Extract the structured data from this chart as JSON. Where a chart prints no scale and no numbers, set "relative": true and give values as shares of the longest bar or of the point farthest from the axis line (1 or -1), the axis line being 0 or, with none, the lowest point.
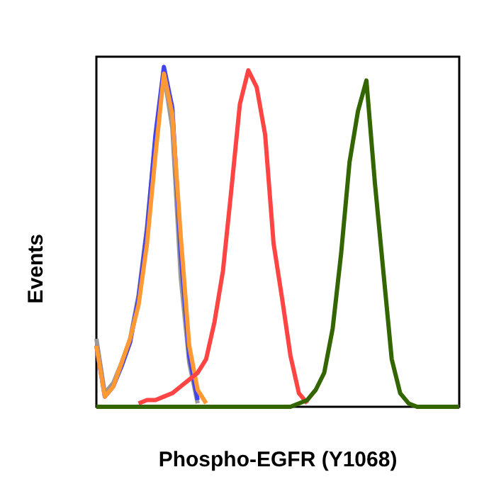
{
  "chart_data": {
    "type": "line",
    "relative": true,
    "xlabel": "Phospho-EGFR (Y1068)",
    "ylabel": "Events",
    "marker": "none",
    "categories": [
      null,
      null,
      null,
      null,
      null,
      null,
      null,
      null,
      null,
      null,
      null,
      null,
      null,
      null,
      null,
      null,
      null,
      null,
      null,
      null,
      null,
      null,
      null,
      null,
      null,
      null,
      null,
      null,
      null,
      null,
      null,
      null,
      null,
      null,
      null,
      null,
      null,
      null,
      null,
      null,
      null,
      null,
      null,
      null
    ],
    "series": [
      {
        "color": "#999999",
        "values": [
          0.2,
          0.04,
          0.07,
          0.13,
          0.2,
          0.33,
          0.53,
          0.79,
          0.98,
          0.82,
          0.38,
          0.13,
          0.01,
          null,
          null,
          null,
          null,
          null,
          null,
          null,
          null,
          null,
          null,
          null,
          null,
          null,
          null,
          null,
          null,
          null,
          null,
          null,
          null,
          null,
          null,
          null,
          null,
          null,
          null,
          null,
          null,
          null,
          null,
          null
        ]
      },
      {
        "color": "#4444ee",
        "values": [
          0.18,
          0.03,
          0.06,
          0.12,
          0.19,
          0.32,
          0.52,
          0.8,
          1.0,
          0.88,
          0.45,
          0.15,
          0.02,
          null,
          null,
          null,
          null,
          null,
          null,
          null,
          null,
          null,
          null,
          null,
          null,
          null,
          null,
          null,
          null,
          null,
          null,
          null,
          null,
          null,
          null,
          null,
          null,
          null,
          null,
          null,
          null,
          null,
          null,
          null
        ]
      },
      {
        "color": "#ff9933",
        "values": [
          0.18,
          0.03,
          0.06,
          0.13,
          0.2,
          0.3,
          0.48,
          0.74,
          0.98,
          0.86,
          0.5,
          0.18,
          0.05,
          0.01,
          null,
          null,
          null,
          null,
          null,
          null,
          null,
          null,
          null,
          null,
          null,
          null,
          null,
          null,
          null,
          null,
          null,
          null,
          null,
          null,
          null,
          null,
          null,
          null,
          null,
          null,
          null,
          null,
          null,
          null
        ]
      },
      {
        "color": "#ff4444",
        "values": [
          null,
          null,
          null,
          null,
          null,
          0.01,
          0.02,
          0.02,
          0.03,
          0.04,
          0.06,
          0.08,
          0.1,
          0.14,
          0.25,
          0.4,
          0.64,
          0.89,
          0.99,
          0.94,
          0.8,
          0.48,
          0.32,
          0.15,
          0.04,
          0.01,
          null,
          null,
          null,
          null,
          null,
          null,
          null,
          null,
          null,
          null,
          null,
          null,
          null,
          null,
          null,
          null,
          null,
          null
        ]
      },
      {
        "color": "#336600",
        "values": [
          0,
          0,
          0,
          0,
          0,
          0,
          0,
          0,
          0,
          0,
          0,
          0,
          0,
          0,
          0,
          0,
          0,
          0,
          0,
          0,
          0,
          0,
          0,
          0,
          0.01,
          0.02,
          0.05,
          0.1,
          0.23,
          0.45,
          0.72,
          0.87,
          0.96,
          0.66,
          0.4,
          0.14,
          0.04,
          0.01,
          0,
          0,
          0,
          0,
          0,
          0
        ]
      }
    ]
  }
}
